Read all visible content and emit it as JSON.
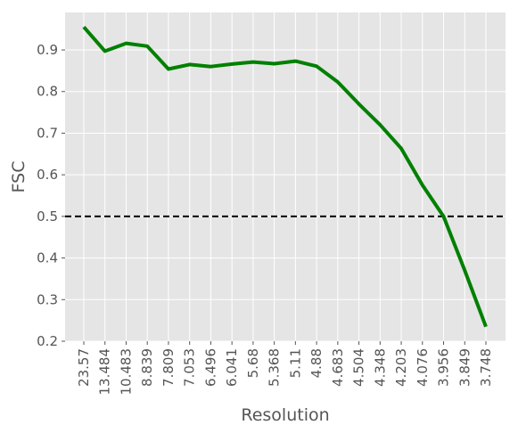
{
  "chart_data": {
    "type": "line",
    "xlabel": "Resolution",
    "ylabel": "FSC",
    "categories": [
      "23.57",
      "13.484",
      "10.483",
      "8.839",
      "7.809",
      "7.053",
      "6.496",
      "6.041",
      "5.68",
      "5.368",
      "5.11",
      "4.88",
      "4.683",
      "4.504",
      "4.348",
      "4.203",
      "4.076",
      "3.956",
      "3.849",
      "3.748"
    ],
    "series": [
      {
        "values": [
          0.955,
          0.897,
          0.916,
          0.909,
          0.854,
          0.865,
          0.86,
          0.866,
          0.871,
          0.867,
          0.873,
          0.861,
          0.823,
          0.77,
          0.72,
          0.663,
          0.575,
          0.5,
          0.37,
          0.235
        ],
        "color": "#008000"
      }
    ],
    "threshold": {
      "value": 0.5,
      "style": "dashed",
      "color": "#000000"
    },
    "yticks": [
      0.2,
      0.3,
      0.4,
      0.5,
      0.6,
      0.7,
      0.8,
      0.9
    ],
    "ylim": [
      0.2,
      0.99
    ],
    "grid": true,
    "plot_background": "#e5e5e5",
    "grid_color": "#ffffff"
  }
}
